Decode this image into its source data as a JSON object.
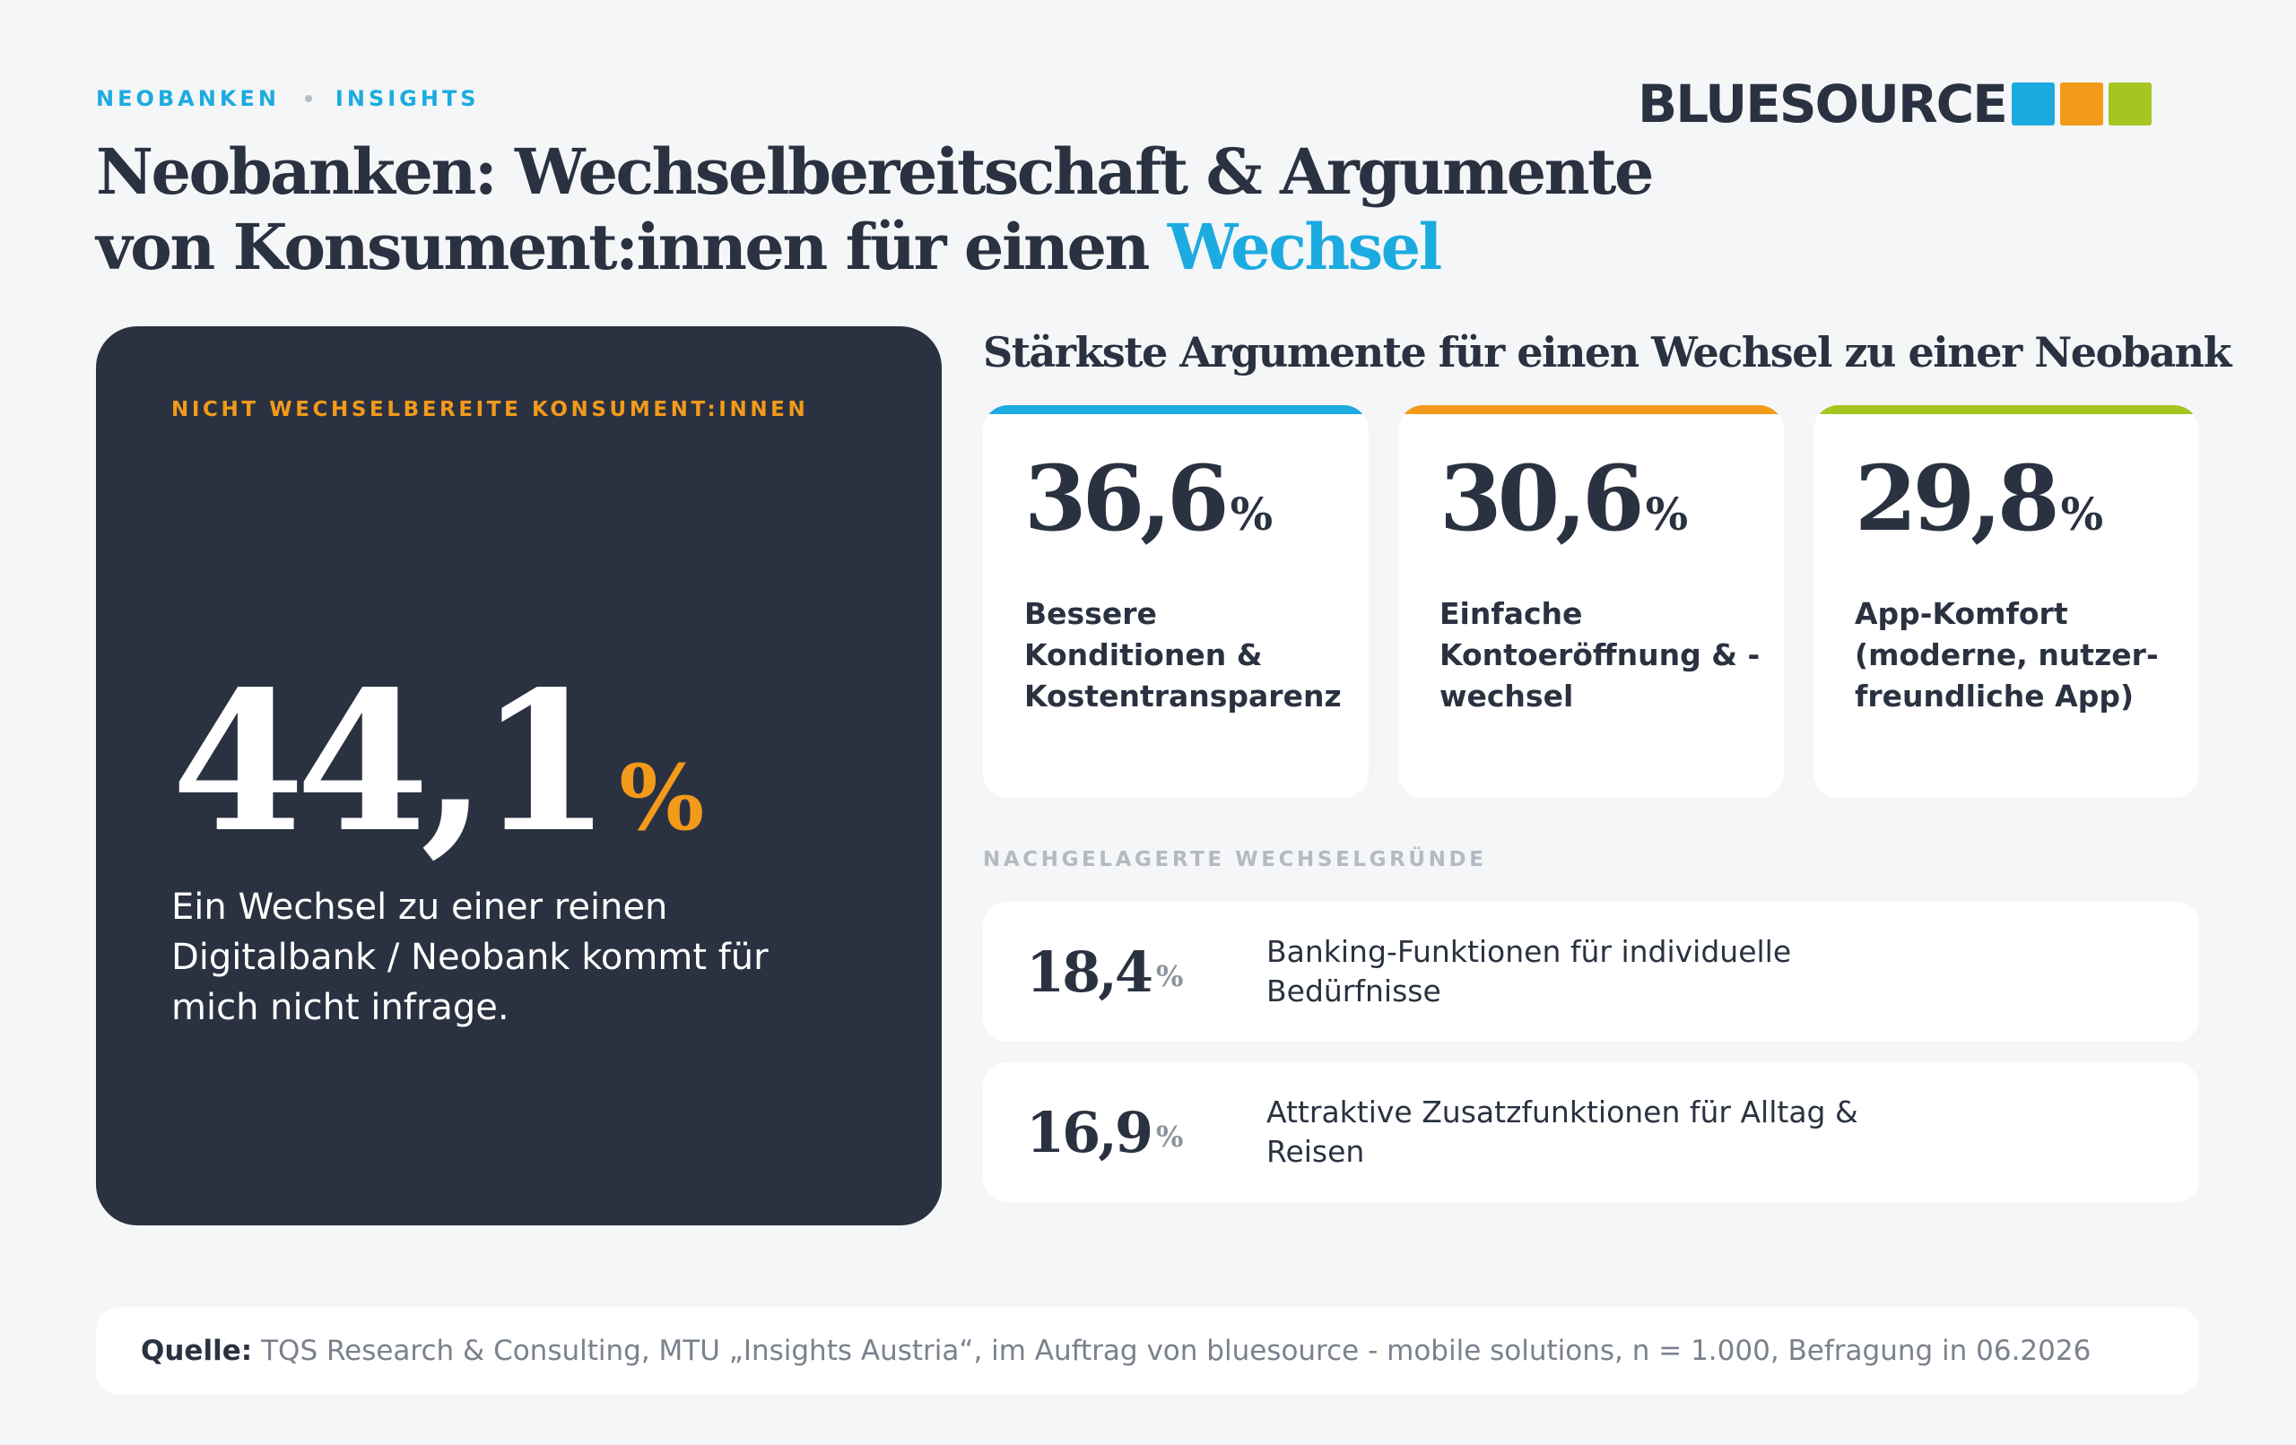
{
  "header": {
    "eyebrow_1": "NEOBANKEN",
    "eyebrow_2": "INSIGHTS",
    "title_line1": "Neobanken: Wechselbereitschaft & Argumente",
    "title_line2_prefix": "von Konsument:innen für einen ",
    "title_line2_accent": "Wechsel"
  },
  "logo": {
    "word": "BLUESOURCE",
    "squares": [
      "#1cabe0",
      "#f39a1a",
      "#a7c520"
    ]
  },
  "dark_card": {
    "kicker": "NICHT WECHSELBEREITE KONSUMENT:INNEN",
    "value": "44,1",
    "unit": "%",
    "description": "Ein Wechsel zu einer reinen Digitalbank / Neobank kommt für mich nicht infrage."
  },
  "main_reasons": {
    "title": "Stärkste Argumente für einen Wechsel zu einer Neobank",
    "items": [
      {
        "value": "36,6",
        "unit": "%",
        "label": "Bessere Konditionen & Kostentransparenz",
        "color": "#1cabe0"
      },
      {
        "value": "30,6",
        "unit": "%",
        "label": "Einfache Kontoeröffnung & -wechsel",
        "color": "#f39a1a"
      },
      {
        "value": "29,8",
        "unit": "%",
        "label": "App-Komfort (moderne, nutzer-freundliche App)",
        "color": "#a7c520"
      }
    ]
  },
  "secondary_reasons": {
    "title": "NACHGELAGERTE WECHSELGRÜNDE",
    "items": [
      {
        "value": "18,4",
        "unit": "%",
        "label": "Banking-Funktionen für individuelle Bedürfnisse"
      },
      {
        "value": "16,9",
        "unit": "%",
        "label": "Attraktive Zusatzfunktionen für Alltag & Reisen"
      }
    ]
  },
  "source": {
    "label": "Quelle:",
    "text": "TQS Research & Consulting, MTU „Insights Austria“, im Auftrag von bluesource - mobile solutions, n = 1.000, Befragung in 06.2026"
  }
}
